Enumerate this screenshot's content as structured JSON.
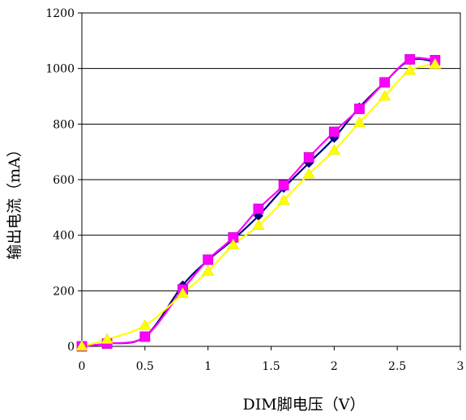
{
  "chart_data": {
    "type": "line",
    "title": "",
    "xlabel": "DIM脚电压（V）",
    "ylabel": "输出电流（mA）",
    "xlim": [
      0,
      3
    ],
    "ylim": [
      0,
      1200
    ],
    "x_ticks": [
      "0",
      "0.5",
      "1",
      "1.5",
      "2",
      "2.5",
      "3"
    ],
    "y_ticks": [
      "0",
      "200",
      "400",
      "600",
      "800",
      "1000",
      "1200"
    ],
    "grid": "horizontal",
    "legend": "none",
    "series": [
      {
        "marker": "diamond",
        "color": "#000080",
        "points": [
          [
            0,
            0
          ],
          [
            0.2,
            10
          ],
          [
            0.5,
            35
          ],
          [
            0.8,
            220
          ],
          [
            1.0,
            310
          ],
          [
            1.2,
            385
          ],
          [
            1.4,
            470
          ],
          [
            1.6,
            570
          ],
          [
            1.8,
            660
          ],
          [
            2.0,
            750
          ],
          [
            2.2,
            860
          ],
          [
            2.4,
            950
          ],
          [
            2.6,
            1030
          ],
          [
            2.8,
            1025
          ]
        ]
      },
      {
        "marker": "square",
        "color": "#ff00ff",
        "points": [
          [
            0,
            0
          ],
          [
            0.2,
            10
          ],
          [
            0.5,
            35
          ],
          [
            0.8,
            205
          ],
          [
            1.0,
            312
          ],
          [
            1.2,
            392
          ],
          [
            1.4,
            495
          ],
          [
            1.6,
            580
          ],
          [
            1.8,
            680
          ],
          [
            2.0,
            772
          ],
          [
            2.2,
            855
          ],
          [
            2.4,
            950
          ],
          [
            2.6,
            1033
          ],
          [
            2.8,
            1030
          ]
        ]
      },
      {
        "marker": "triangle",
        "color": "#ffff00",
        "points": [
          [
            0,
            0
          ],
          [
            0.2,
            25
          ],
          [
            0.5,
            75
          ],
          [
            0.8,
            190
          ],
          [
            1.0,
            270
          ],
          [
            1.2,
            365
          ],
          [
            1.4,
            435
          ],
          [
            1.6,
            525
          ],
          [
            1.8,
            620
          ],
          [
            2.0,
            705
          ],
          [
            2.2,
            805
          ],
          [
            2.4,
            900
          ],
          [
            2.6,
            993
          ],
          [
            2.8,
            1015
          ]
        ]
      }
    ]
  }
}
